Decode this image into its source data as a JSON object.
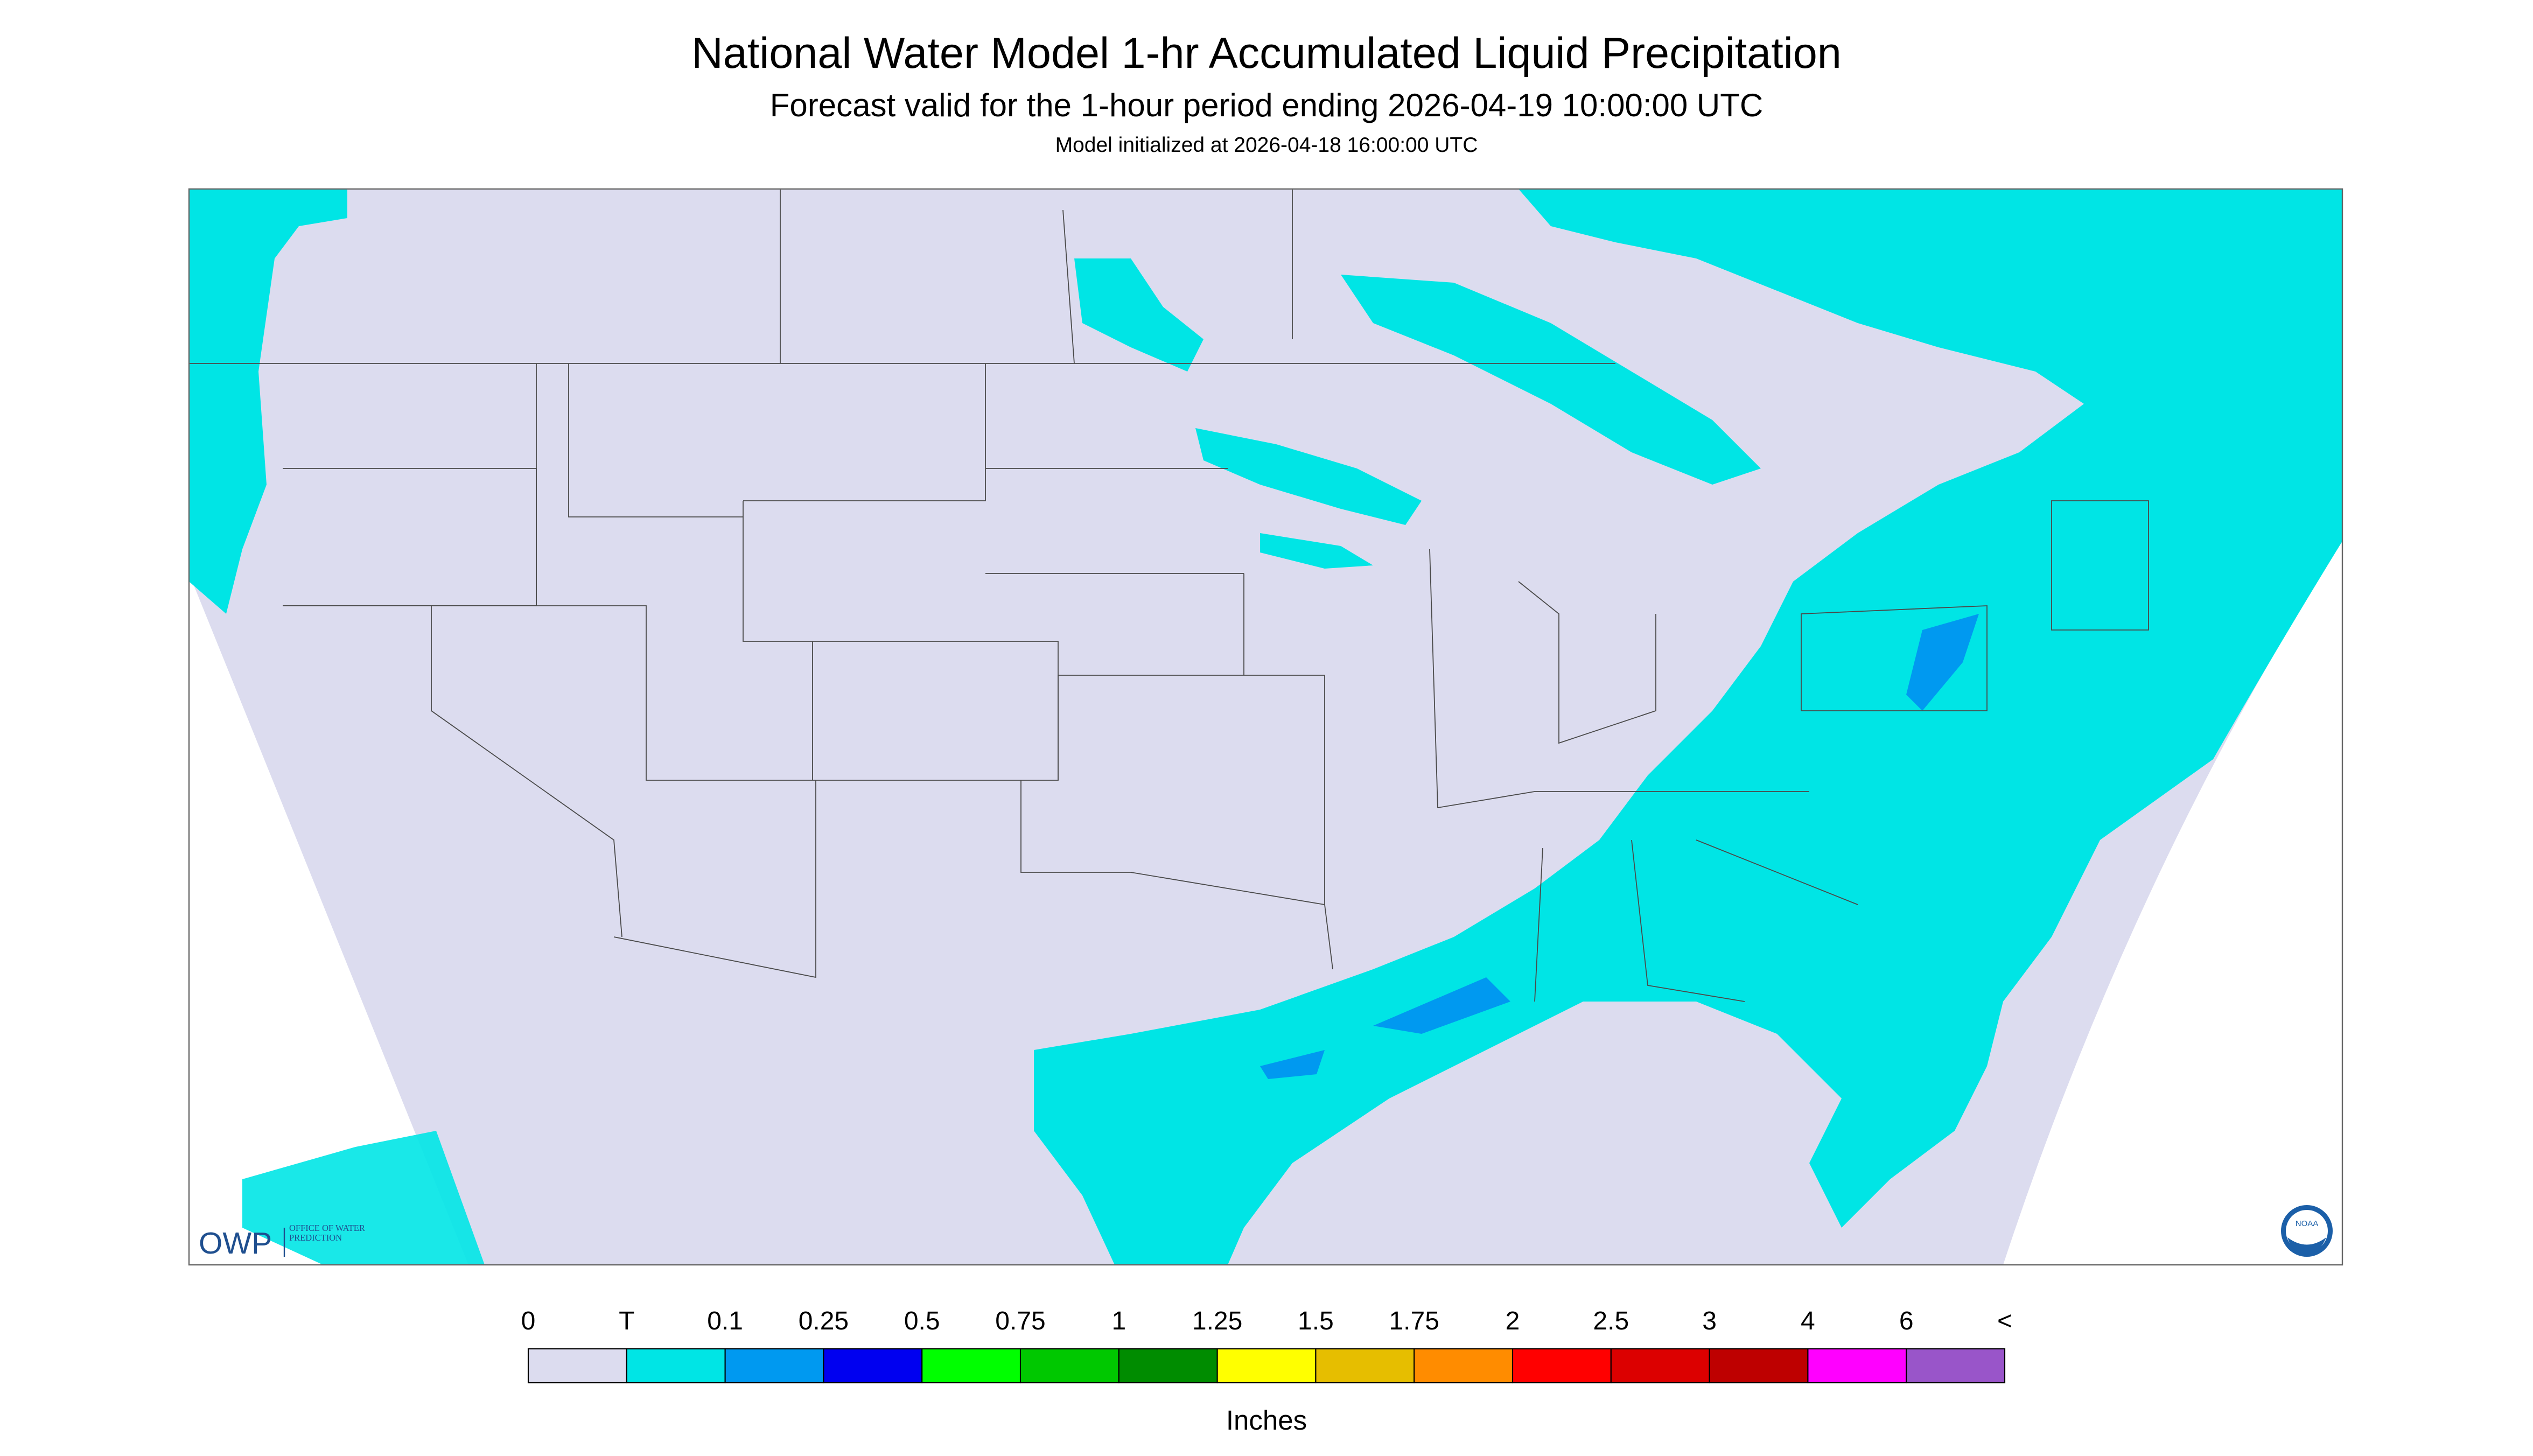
{
  "header": {
    "title": "National Water Model 1-hr Accumulated Liquid Precipitation",
    "subtitle": "Forecast valid for the 1-hour period ending 2026-04-19 10:00:00 UTC",
    "initialized": "Model initialized at 2026-04-18 16:00:00 UTC"
  },
  "legend": {
    "labels": [
      "0",
      "T",
      "0.1",
      "0.25",
      "0.5",
      "0.75",
      "1",
      "1.25",
      "1.5",
      "1.75",
      "2",
      "2.5",
      "3",
      "4",
      "6",
      "<"
    ],
    "colors": [
      "#dcdcef",
      "#00e5e5",
      "#0099f0",
      "#0000f0",
      "#00ff00",
      "#00c800",
      "#008c00",
      "#ffff00",
      "#e6be00",
      "#ff8c00",
      "#ff0000",
      "#dc0000",
      "#be0000",
      "#ff00ff",
      "#9955c9"
    ],
    "unit": "Inches"
  },
  "logos": {
    "owp": "OWP",
    "owp_name": "OFFICE OF WATER PREDICTION",
    "noaa": "NOAA"
  }
}
